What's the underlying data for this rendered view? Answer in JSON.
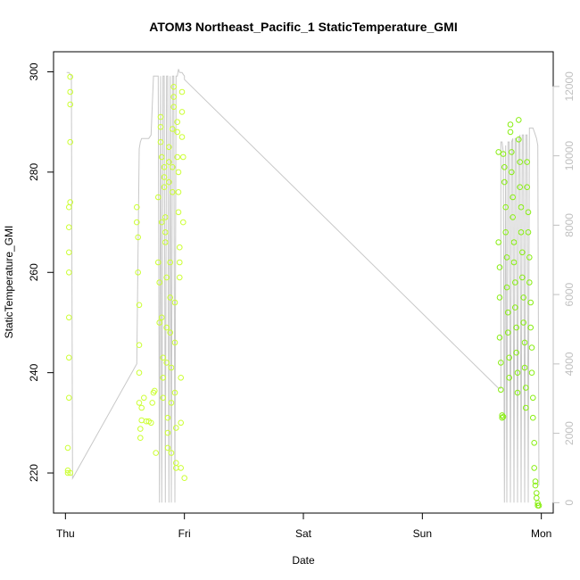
{
  "chart_data": {
    "type": "scatter",
    "title": "ATOM3 Northeast_Pacific_1 StaticTemperature_GMI",
    "xlabel": "Date",
    "ylabel": "StaticTemperature_GMI",
    "x_ticks": [
      "Thu",
      "Fri",
      "Sat",
      "Sun",
      "Mon"
    ],
    "y_ticks": [
      220,
      240,
      260,
      280,
      300
    ],
    "y2_ticks": [
      0,
      2000,
      4000,
      6000,
      8000,
      10000,
      12000
    ],
    "xlim": [
      -0.1,
      4.1
    ],
    "ylim": [
      212,
      304
    ],
    "y2lim": [
      -300,
      13000
    ],
    "grid": false,
    "legend": "none",
    "colors": {
      "points_early": "#ccff33",
      "points_late": "#88ee11",
      "altitude_line": "#c8c8c8",
      "right_axis": "#c0c0c0"
    },
    "series": [
      {
        "type": "scatter",
        "x": [
          0.02,
          0.02,
          0.02,
          0.03,
          0.03,
          0.03,
          0.03,
          0.03,
          0.03,
          0.03,
          0.04,
          0.04,
          0.04,
          0.04,
          0.04,
          0.04,
          0.6,
          0.6,
          0.61,
          0.61,
          0.62,
          0.62,
          0.62,
          0.62,
          0.63,
          0.63,
          0.64,
          0.64,
          0.66,
          0.68,
          0.7,
          0.72,
          0.73,
          0.74,
          0.75,
          0.76,
          0.78,
          0.78,
          0.79,
          0.79,
          0.8,
          0.8,
          0.8,
          0.81,
          0.81,
          0.81,
          0.82,
          0.82,
          0.82,
          0.83,
          0.83,
          0.83,
          0.84,
          0.84,
          0.84,
          0.85,
          0.85,
          0.85,
          0.86,
          0.86,
          0.86,
          0.87,
          0.87,
          0.87,
          0.88,
          0.88,
          0.88,
          0.89,
          0.89,
          0.89,
          0.9,
          0.9,
          0.9,
          0.91,
          0.91,
          0.91,
          0.92,
          0.92,
          0.92,
          0.93,
          0.93,
          0.93,
          0.94,
          0.94,
          0.94,
          0.95,
          0.95,
          0.95,
          0.96,
          0.96,
          0.96,
          0.97,
          0.97,
          0.97,
          0.98,
          0.98,
          0.98,
          0.99,
          0.99,
          1.0
        ],
        "y": [
          220,
          220.5,
          225,
          235,
          243,
          251,
          260,
          264,
          269,
          273,
          274,
          286,
          293.5,
          296,
          299,
          220,
          273,
          270,
          267,
          260,
          253.5,
          245.5,
          240,
          234,
          228.8,
          227,
          233,
          230.5,
          235,
          230.3,
          230.3,
          230,
          234,
          236,
          236.4,
          224,
          275,
          262,
          258,
          250,
          291,
          289,
          286,
          283,
          270,
          251,
          243,
          239,
          235,
          281,
          279,
          277,
          271,
          268,
          266,
          259,
          249,
          242,
          231,
          228,
          225,
          285,
          282,
          278,
          262,
          255,
          248,
          241,
          234,
          224,
          288.6,
          281,
          276,
          297,
          295,
          293,
          254,
          246,
          236,
          229,
          222,
          221,
          290,
          288,
          283,
          280,
          276,
          272,
          265,
          262,
          259,
          239,
          230,
          221,
          296,
          292,
          287,
          283,
          270,
          219
        ],
        "color": "#ccff33"
      },
      {
        "type": "scatter",
        "x": [
          3.64,
          3.64,
          3.65,
          3.65,
          3.65,
          3.66,
          3.66,
          3.67,
          3.67,
          3.68,
          3.68,
          3.69,
          3.69,
          3.7,
          3.7,
          3.71,
          3.71,
          3.72,
          3.72,
          3.73,
          3.73,
          3.74,
          3.74,
          3.75,
          3.75,
          3.76,
          3.76,
          3.77,
          3.77,
          3.78,
          3.78,
          3.79,
          3.79,
          3.8,
          3.8,
          3.81,
          3.81,
          3.82,
          3.82,
          3.83,
          3.83,
          3.84,
          3.84,
          3.85,
          3.85,
          3.86,
          3.86,
          3.87,
          3.87,
          3.88,
          3.88,
          3.89,
          3.89,
          3.9,
          3.9,
          3.91,
          3.91,
          3.92,
          3.92,
          3.93,
          3.93,
          3.94,
          3.94,
          3.95,
          3.95,
          3.96,
          3.96,
          3.97,
          3.97,
          3.98
        ],
        "y": [
          284,
          266,
          261,
          255,
          247,
          242,
          236.6,
          231,
          231.5,
          231.2,
          283.6,
          281,
          278,
          273,
          268,
          263,
          257,
          252,
          248,
          243,
          239,
          289.5,
          288,
          284,
          280,
          275,
          271,
          266,
          262,
          258,
          253,
          249,
          244,
          240,
          236,
          290.4,
          286.5,
          282,
          277,
          273,
          268,
          264,
          259,
          255,
          250,
          246,
          241,
          237,
          233,
          282,
          277,
          272,
          268,
          263,
          258,
          254,
          249,
          245,
          240,
          235,
          231,
          226,
          221,
          218.3,
          217.5,
          216,
          215,
          214,
          213.5,
          213.5
        ],
        "color": "#88ee11"
      },
      {
        "type": "line",
        "axis": "right",
        "name": "",
        "x": [
          0.01,
          0.03,
          0.05,
          0.06,
          0.6,
          0.62,
          0.63,
          0.64,
          0.7,
          0.72,
          0.74,
          0.76,
          0.78,
          0.79,
          0.8,
          0.81,
          0.82,
          0.83,
          0.84,
          0.85,
          0.86,
          0.87,
          0.88,
          0.89,
          0.9,
          0.91,
          0.92,
          0.93,
          0.94,
          0.95,
          0.96,
          0.97,
          0.98,
          0.99,
          1.0,
          1.0,
          3.64,
          3.66,
          3.66,
          3.67,
          3.68,
          3.69,
          3.7,
          3.71,
          3.72,
          3.73,
          3.74,
          3.75,
          3.76,
          3.77,
          3.78,
          3.79,
          3.8,
          3.81,
          3.82,
          3.83,
          3.84,
          3.85,
          3.86,
          3.87,
          3.88,
          3.89,
          3.9,
          3.91,
          3.92,
          3.93,
          3.94,
          3.95,
          3.96,
          3.97,
          3.98
        ],
        "y": [
          12400,
          12400,
          12300,
          700,
          4000,
          10200,
          10400,
          10500,
          10500,
          10600,
          12300,
          12300,
          12300,
          0,
          12300,
          0,
          12300,
          12300,
          0,
          12300,
          12300,
          0,
          12300,
          0,
          12300,
          12300,
          0,
          12300,
          12300,
          12500,
          12400,
          12400,
          12400,
          12350,
          12300,
          12200,
          3300,
          3300,
          10400,
          10400,
          10100,
          0,
          10300,
          0,
          10400,
          10400,
          0,
          10400,
          10500,
          0,
          10500,
          10500,
          0,
          10500,
          10600,
          0,
          10600,
          10600,
          0,
          10600,
          10600,
          0,
          10800,
          10800,
          10800,
          10800,
          10700,
          10600,
          10500,
          10300,
          500
        ]
      }
    ]
  }
}
